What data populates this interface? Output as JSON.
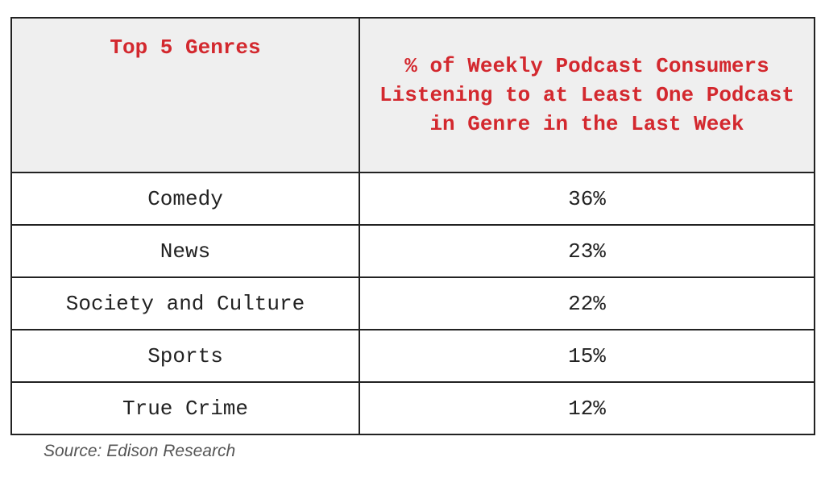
{
  "chart_data": {
    "type": "table",
    "columns": [
      "Top 5 Genres",
      "% of Weekly Podcast Consumers Listening to at Least One Podcast in Genre in the Last Week"
    ],
    "rows": [
      {
        "genre": "Comedy",
        "value": "36%"
      },
      {
        "genre": "News",
        "value": "23%"
      },
      {
        "genre": "Society and Culture",
        "value": "22%"
      },
      {
        "genre": "Sports",
        "value": "15%"
      },
      {
        "genre": "True Crime",
        "value": "12%"
      }
    ],
    "header_color": "#d3282e",
    "header_background": "#efefef"
  },
  "source": "Source: Edison Research"
}
